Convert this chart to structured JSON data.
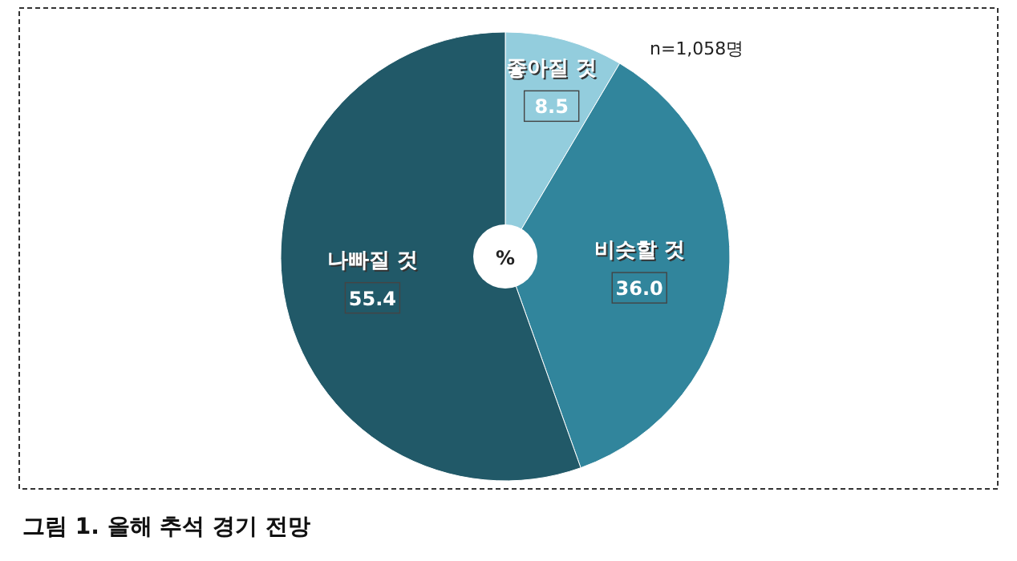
{
  "chart_data": {
    "type": "pie",
    "title": "그림 1.  올해 추석 경기 전망",
    "categories": [
      "좋아질 것",
      "비슷할 것",
      "나빠질 것"
    ],
    "values": [
      8.5,
      36.0,
      55.4
    ],
    "value_labels": [
      "8.5",
      "36.0",
      "55.4"
    ],
    "colors": [
      "#93cddd",
      "#31859c",
      "#215968"
    ],
    "annotations": [
      "n=1,058명",
      "%"
    ]
  }
}
